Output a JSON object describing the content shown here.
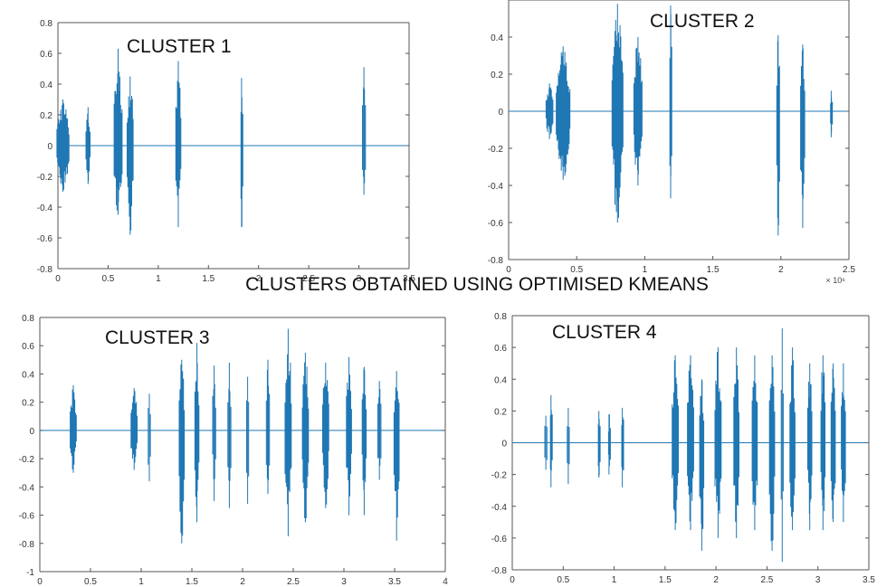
{
  "main_title": "CLUSTERS OBTAINED USING OPTIMISED KMEANS",
  "colors": {
    "signal": "#1f77b4",
    "axis": "#444444",
    "background": "#ffffff"
  },
  "chart_data": [
    {
      "type": "line",
      "title": "CLUSTER 1",
      "xlim": [
        0,
        3.5
      ],
      "ylim": [
        -0.8,
        0.8
      ],
      "xticks": [
        0,
        0.5,
        1,
        1.5,
        2,
        2.5,
        3,
        3.5
      ],
      "xtick_labels": [
        "0",
        "0.5",
        "1",
        "1.5",
        "2",
        "2.5",
        "3",
        "3.5"
      ],
      "yticks": [
        -0.8,
        -0.6,
        -0.4,
        -0.2,
        0,
        0.2,
        0.4,
        0.6,
        0.8
      ],
      "ytick_labels": [
        "-0.8",
        "-0.6",
        "-0.4",
        "-0.2",
        "0",
        "0.2",
        "0.4",
        "0.6",
        "0.8"
      ],
      "x_exponent": "",
      "grid": false,
      "bursts": [
        {
          "x": 0.05,
          "width": 0.12,
          "max": 0.3,
          "min": -0.3
        },
        {
          "x": 0.3,
          "width": 0.04,
          "max": 0.25,
          "min": -0.25
        },
        {
          "x": 0.6,
          "width": 0.08,
          "max": 0.63,
          "min": -0.45
        },
        {
          "x": 0.72,
          "width": 0.06,
          "max": 0.45,
          "min": -0.58
        },
        {
          "x": 1.2,
          "width": 0.05,
          "max": 0.55,
          "min": -0.53
        },
        {
          "x": 1.83,
          "width": 0.01,
          "max": 0.44,
          "min": -0.53
        },
        {
          "x": 3.05,
          "width": 0.03,
          "max": 0.51,
          "min": -0.32
        }
      ]
    },
    {
      "type": "line",
      "title": "CLUSTER 2",
      "xlim": [
        0,
        2.5
      ],
      "ylim": [
        -0.8,
        0.6
      ],
      "xticks": [
        0,
        0.5,
        1,
        1.5,
        2,
        2.5
      ],
      "xtick_labels": [
        "0",
        "0.5",
        "1",
        "1.5",
        "2",
        "2.5"
      ],
      "yticks": [
        -0.8,
        -0.6,
        -0.4,
        -0.2,
        0,
        0.2,
        0.4
      ],
      "ytick_labels": [
        "-0.8",
        "-0.6",
        "-0.4",
        "-0.2",
        "0",
        "0.2",
        "0.4"
      ],
      "x_exponent": "× 10⁶",
      "grid": false,
      "bursts": [
        {
          "x": 0.3,
          "width": 0.05,
          "max": 0.15,
          "min": -0.15
        },
        {
          "x": 0.4,
          "width": 0.1,
          "max": 0.35,
          "min": -0.37
        },
        {
          "x": 0.8,
          "width": 0.08,
          "max": 0.58,
          "min": -0.6
        },
        {
          "x": 0.95,
          "width": 0.06,
          "max": 0.4,
          "min": -0.4
        },
        {
          "x": 1.19,
          "width": 0.01,
          "max": 0.57,
          "min": -0.47
        },
        {
          "x": 1.98,
          "width": 0.02,
          "max": 0.41,
          "min": -0.67
        },
        {
          "x": 2.16,
          "width": 0.03,
          "max": 0.36,
          "min": -0.63
        },
        {
          "x": 2.37,
          "width": 0.01,
          "max": 0.11,
          "min": -0.14
        }
      ]
    },
    {
      "type": "line",
      "title": "CLUSTER 3",
      "xlim": [
        0,
        4
      ],
      "ylim": [
        -1,
        0.8
      ],
      "xticks": [
        0,
        0.5,
        1,
        1.5,
        2,
        2.5,
        3,
        3.5,
        4
      ],
      "xtick_labels": [
        "0",
        "0.5",
        "1",
        "1.5",
        "2",
        "2.5",
        "3",
        "3.5",
        "4"
      ],
      "yticks": [
        -1,
        -0.8,
        -0.6,
        -0.4,
        -0.2,
        0,
        0.2,
        0.4,
        0.6,
        0.8
      ],
      "ytick_labels": [
        "-1",
        "-0.8",
        "-0.6",
        "-0.4",
        "-0.2",
        "0",
        "0.2",
        "0.4",
        "0.6",
        "0.8"
      ],
      "x_exponent": "",
      "grid": false,
      "bursts": [
        {
          "x": 0.33,
          "width": 0.06,
          "max": 0.32,
          "min": -0.3
        },
        {
          "x": 0.93,
          "width": 0.06,
          "max": 0.3,
          "min": -0.28
        },
        {
          "x": 1.08,
          "width": 0.02,
          "max": 0.26,
          "min": -0.36
        },
        {
          "x": 1.4,
          "width": 0.05,
          "max": 0.5,
          "min": -0.8
        },
        {
          "x": 1.55,
          "width": 0.04,
          "max": 0.62,
          "min": -0.65
        },
        {
          "x": 1.72,
          "width": 0.03,
          "max": 0.46,
          "min": -0.5
        },
        {
          "x": 1.87,
          "width": 0.03,
          "max": 0.48,
          "min": -0.55
        },
        {
          "x": 2.05,
          "width": 0.02,
          "max": 0.38,
          "min": -0.52
        },
        {
          "x": 2.25,
          "width": 0.03,
          "max": 0.5,
          "min": -0.45
        },
        {
          "x": 2.45,
          "width": 0.06,
          "max": 0.72,
          "min": -0.75
        },
        {
          "x": 2.62,
          "width": 0.06,
          "max": 0.55,
          "min": -0.65
        },
        {
          "x": 2.82,
          "width": 0.06,
          "max": 0.48,
          "min": -0.55
        },
        {
          "x": 3.05,
          "width": 0.05,
          "max": 0.52,
          "min": -0.6
        },
        {
          "x": 3.2,
          "width": 0.04,
          "max": 0.45,
          "min": -0.6
        },
        {
          "x": 3.35,
          "width": 0.03,
          "max": 0.35,
          "min": -0.35
        },
        {
          "x": 3.52,
          "width": 0.05,
          "max": 0.42,
          "min": -0.78
        }
      ]
    },
    {
      "type": "line",
      "title": "CLUSTER 4",
      "xlim": [
        0,
        3.5
      ],
      "ylim": [
        -0.8,
        0.8
      ],
      "xticks": [
        0,
        0.5,
        1,
        1.5,
        2,
        2.5,
        3,
        3.5
      ],
      "xtick_labels": [
        "0",
        "0.5",
        "1",
        "1.5",
        "2",
        "2.5",
        "3",
        "3.5"
      ],
      "yticks": [
        -0.8,
        -0.6,
        -0.4,
        -0.2,
        0,
        0.2,
        0.4,
        0.6,
        0.8
      ],
      "ytick_labels": [
        "-0.8",
        "-0.6",
        "-0.4",
        "-0.2",
        "0",
        "0.2",
        "0.4",
        "0.6",
        "0.8"
      ],
      "x_exponent": "",
      "grid": false,
      "bursts": [
        {
          "x": 0.33,
          "width": 0.02,
          "max": 0.17,
          "min": -0.17
        },
        {
          "x": 0.38,
          "width": 0.01,
          "max": 0.3,
          "min": -0.28
        },
        {
          "x": 0.55,
          "width": 0.02,
          "max": 0.22,
          "min": -0.26
        },
        {
          "x": 0.85,
          "width": 0.01,
          "max": 0.2,
          "min": -0.22
        },
        {
          "x": 0.95,
          "width": 0.01,
          "max": 0.18,
          "min": -0.2
        },
        {
          "x": 1.08,
          "width": 0.01,
          "max": 0.22,
          "min": -0.28
        },
        {
          "x": 1.6,
          "width": 0.06,
          "max": 0.55,
          "min": -0.55
        },
        {
          "x": 1.75,
          "width": 0.06,
          "max": 0.55,
          "min": -0.55
        },
        {
          "x": 1.86,
          "width": 0.04,
          "max": 0.4,
          "min": -0.68
        },
        {
          "x": 2.02,
          "width": 0.06,
          "max": 0.6,
          "min": -0.6
        },
        {
          "x": 2.2,
          "width": 0.05,
          "max": 0.6,
          "min": -0.6
        },
        {
          "x": 2.38,
          "width": 0.05,
          "max": 0.55,
          "min": -0.55
        },
        {
          "x": 2.55,
          "width": 0.05,
          "max": 0.55,
          "min": -0.68
        },
        {
          "x": 2.65,
          "width": 0.02,
          "max": 0.72,
          "min": -0.75
        },
        {
          "x": 2.75,
          "width": 0.05,
          "max": 0.6,
          "min": -0.55
        },
        {
          "x": 2.92,
          "width": 0.04,
          "max": 0.5,
          "min": -0.55
        },
        {
          "x": 3.05,
          "width": 0.04,
          "max": 0.55,
          "min": -0.55
        },
        {
          "x": 3.15,
          "width": 0.04,
          "max": 0.5,
          "min": -0.5
        },
        {
          "x": 3.25,
          "width": 0.04,
          "max": 0.5,
          "min": -0.5
        }
      ]
    }
  ]
}
